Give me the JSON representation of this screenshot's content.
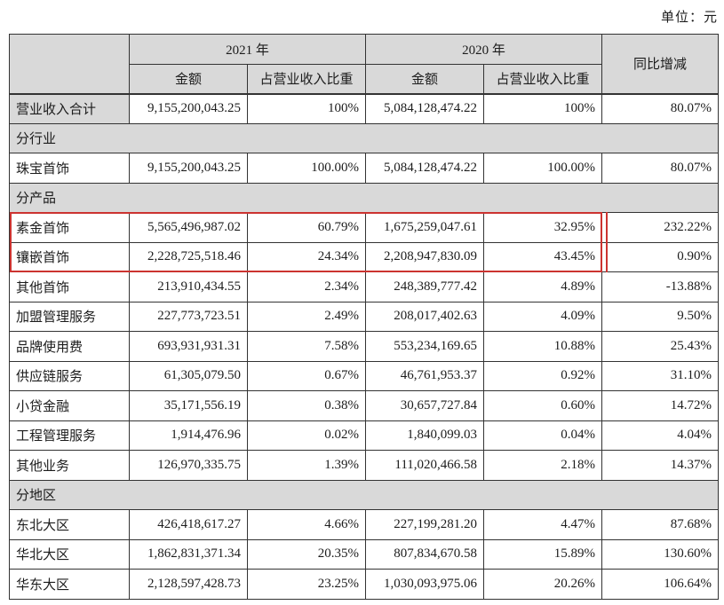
{
  "unit_label": "单位：元",
  "colors": {
    "header_bg": "#d9d9d9",
    "section_bg": "#d9d9d9",
    "border_color": "#333333",
    "annotation_red": "#cc3330"
  },
  "header": {
    "year_2021": "2021 年",
    "year_2020": "2020 年",
    "yoy_label": "同比增减",
    "amount_label": "金额",
    "share_label": "占营业收入比重"
  },
  "table": {
    "rows": [
      {
        "type": "data",
        "label": "营业收入合计",
        "label_shaded": true,
        "a2021": "9,155,200,043.25",
        "p2021": "100%",
        "a2020": "5,084,128,474.22",
        "p2020": "100%",
        "yoy": "80.07%"
      },
      {
        "type": "section",
        "label": "分行业"
      },
      {
        "type": "data",
        "label": "珠宝首饰",
        "a2021": "9,155,200,043.25",
        "p2021": "100.00%",
        "a2020": "5,084,128,474.22",
        "p2020": "100.00%",
        "yoy": "80.07%"
      },
      {
        "type": "section",
        "label": "分产品"
      },
      {
        "type": "data",
        "label": "素金首饰",
        "a2021": "5,565,496,987.02",
        "p2021": "60.79%",
        "a2020": "1,675,259,047.61",
        "p2020": "32.95%",
        "yoy": "232.22%"
      },
      {
        "type": "data",
        "label": "镶嵌首饰",
        "a2021": "2,228,725,518.46",
        "p2021": "24.34%",
        "a2020": "2,208,947,830.09",
        "p2020": "43.45%",
        "yoy": "0.90%"
      },
      {
        "type": "data",
        "label": "其他首饰",
        "a2021": "213,910,434.55",
        "p2021": "2.34%",
        "a2020": "248,389,777.42",
        "p2020": "4.89%",
        "yoy": "-13.88%"
      },
      {
        "type": "data",
        "label": "加盟管理服务",
        "a2021": "227,773,723.51",
        "p2021": "2.49%",
        "a2020": "208,017,402.63",
        "p2020": "4.09%",
        "yoy": "9.50%"
      },
      {
        "type": "data",
        "label": "品牌使用费",
        "a2021": "693,931,931.31",
        "p2021": "7.58%",
        "a2020": "553,234,169.65",
        "p2020": "10.88%",
        "yoy": "25.43%"
      },
      {
        "type": "data",
        "label": "供应链服务",
        "a2021": "61,305,079.50",
        "p2021": "0.67%",
        "a2020": "46,761,953.37",
        "p2020": "0.92%",
        "yoy": "31.10%"
      },
      {
        "type": "data",
        "label": "小贷金融",
        "a2021": "35,171,556.19",
        "p2021": "0.38%",
        "a2020": "30,657,727.84",
        "p2020": "0.60%",
        "yoy": "14.72%"
      },
      {
        "type": "data",
        "label": "工程管理服务",
        "a2021": "1,914,476.96",
        "p2021": "0.02%",
        "a2020": "1,840,099.03",
        "p2020": "0.04%",
        "yoy": "4.04%"
      },
      {
        "type": "data",
        "label": "其他业务",
        "a2021": "126,970,335.75",
        "p2021": "1.39%",
        "a2020": "111,020,466.58",
        "p2020": "2.18%",
        "yoy": "14.37%"
      },
      {
        "type": "section",
        "label": "分地区"
      },
      {
        "type": "data",
        "label": "东北大区",
        "a2021": "426,418,617.27",
        "p2021": "4.66%",
        "a2020": "227,199,281.20",
        "p2020": "4.47%",
        "yoy": "87.68%"
      },
      {
        "type": "data",
        "label": "华北大区",
        "a2021": "1,862,831,371.34",
        "p2021": "20.35%",
        "a2020": "807,834,670.58",
        "p2020": "15.89%",
        "yoy": "130.60%"
      },
      {
        "type": "data",
        "label": "华东大区",
        "a2021": "2,128,597,428.73",
        "p2021": "23.25%",
        "a2020": "1,030,093,975.06",
        "p2020": "20.26%",
        "yoy": "106.64%"
      }
    ]
  },
  "annotation": {
    "description": "red highlight rectangle around 素金首饰 and 镶嵌首饰 rows plus red line at left edge of 同比增减 column"
  }
}
